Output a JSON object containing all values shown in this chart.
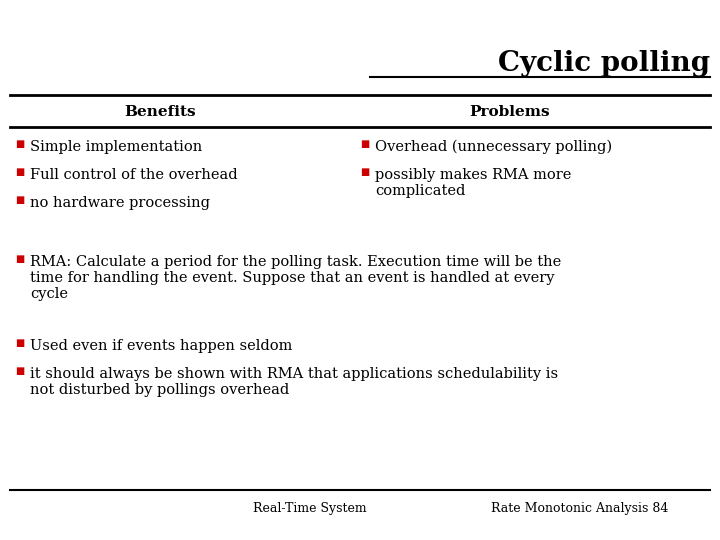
{
  "title": "Cyclic polling",
  "col1_header": "Benefits",
  "col2_header": "Problems",
  "col1_items": [
    "Simple implementation",
    "Full control of the overhead",
    "no hardware processing"
  ],
  "col2_items": [
    "Overhead (unnecessary polling)",
    "possibly makes RMA more\ncomplicated"
  ],
  "bottom_items": [
    "RMA: Calculate a period for the polling task. Execution time will be the\ntime for handling the event. Suppose that an event is handled at every\ncycle",
    "Used even if events happen seldom",
    "it should always be shown with RMA that applications schedulability is\nnot disturbed by pollings overhead"
  ],
  "footer_left": "Real-Time System",
  "footer_right": "Rate Monotonic Analysis 84",
  "bullet_color": "#cc0000",
  "bg_color": "#ffffff",
  "text_color": "#000000",
  "title_fontsize": 20,
  "header_fontsize": 11,
  "body_fontsize": 10.5,
  "footer_fontsize": 9
}
